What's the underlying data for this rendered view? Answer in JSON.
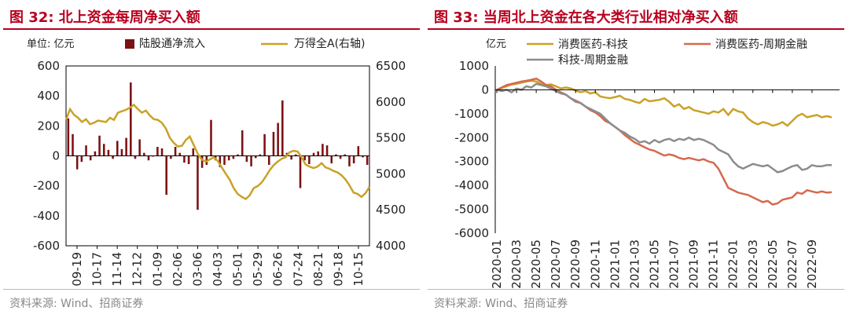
{
  "left_panel": {
    "title": "图 32:  北上资金每周净买入额",
    "source": "资料来源:  Wind、招商证券"
  },
  "right_panel": {
    "title": "图 33:  当周北上资金在各大类行业相对净买入额",
    "source": "资料来源:  Wind、招商证券"
  },
  "chart_data": [
    {
      "type": "bar",
      "unit_label": "单位:  亿元",
      "x_tick_labels": [
        "09-19",
        "10-17",
        "11-14",
        "12-12",
        "01-09",
        "02-06",
        "03-06",
        "04-03",
        "05-01",
        "05-29",
        "06-26",
        "07-24",
        "08-21",
        "09-18",
        "10-15"
      ],
      "ylim_left": [
        -600,
        600
      ],
      "yticks_left": [
        -600,
        -400,
        -200,
        0,
        200,
        400,
        600
      ],
      "ylim_right": [
        4000,
        6500
      ],
      "yticks_right": [
        4000,
        4500,
        5000,
        5500,
        6000,
        6500
      ],
      "series": [
        {
          "name": "陆股通净流入",
          "type": "bar",
          "color": "#7b1113",
          "axis": "left",
          "values": [
            250,
            145,
            -90,
            -40,
            70,
            -30,
            30,
            135,
            80,
            40,
            -20,
            100,
            45,
            120,
            490,
            -20,
            110,
            20,
            -30,
            -5,
            60,
            50,
            -260,
            -20,
            60,
            20,
            -45,
            -55,
            50,
            -360,
            -80,
            -60,
            240,
            -30,
            -75,
            -60,
            -30,
            -20,
            10,
            170,
            -40,
            -70,
            -15,
            10,
            145,
            -60,
            160,
            220,
            370,
            20,
            -25,
            10,
            -215,
            -30,
            -55,
            20,
            30,
            80,
            70,
            -50,
            10,
            -20,
            10,
            -70,
            -50,
            65,
            -10,
            -60
          ]
        },
        {
          "name": "万得全A(右轴)",
          "type": "line",
          "color": "#c9a227",
          "axis": "right",
          "values": [
            5750,
            5900,
            5820,
            5780,
            5720,
            5760,
            5690,
            5710,
            5740,
            5730,
            5720,
            5780,
            5750,
            5850,
            5870,
            5890,
            5920,
            5960,
            5900,
            5850,
            5880,
            5810,
            5760,
            5750,
            5710,
            5630,
            5500,
            5430,
            5380,
            5390,
            5470,
            5520,
            5400,
            5280,
            5200,
            5170,
            5200,
            5230,
            5180,
            5090,
            5000,
            4920,
            4800,
            4720,
            4680,
            4650,
            4700,
            4800,
            4830,
            4880,
            4960,
            5050,
            5120,
            5170,
            5210,
            5230,
            5300,
            5320,
            5310,
            5230,
            5130,
            5100,
            5080,
            5100,
            5150,
            5090,
            5070,
            5040,
            5020,
            4980,
            4920,
            4840,
            4740,
            4720,
            4680,
            4730,
            4820
          ]
        }
      ]
    },
    {
      "type": "line",
      "unit_label": "亿元",
      "x_tick_labels": [
        "2020-01",
        "2020-03",
        "2020-05",
        "2020-07",
        "2020-09",
        "2020-11",
        "2021-01",
        "2021-03",
        "2021-05",
        "2021-07",
        "2021-09",
        "2021-11",
        "2022-01",
        "2022-03",
        "2022-05",
        "2022-07",
        "2022-09"
      ],
      "ylim": [
        -6000,
        1000
      ],
      "yticks": [
        -6000,
        -5000,
        -4000,
        -3000,
        -2000,
        -1000,
        0,
        1000
      ],
      "series": [
        {
          "name": "消费医药-科技",
          "color": "#c9a227",
          "x": [
            0,
            0.5,
            1,
            1.5,
            2,
            2.5,
            3,
            3.5,
            4,
            4.5,
            5,
            5.5,
            6,
            6.5,
            7,
            7.5,
            8,
            8.5,
            9,
            9.5,
            10,
            10.5,
            11,
            11.5,
            12,
            12.5,
            13,
            13.5,
            14,
            14.5,
            15,
            15.5,
            16,
            16.5,
            17,
            17.5,
            18,
            18.5,
            19,
            19.5,
            20,
            20.5,
            21,
            21.5,
            22,
            22.5,
            23,
            23.5,
            24,
            24.5,
            25,
            25.5,
            26,
            26.5,
            27,
            27.5,
            28,
            28.5,
            29,
            29.5,
            30,
            30.5,
            31,
            31.5,
            32,
            32.5,
            33,
            33.5,
            34
          ],
          "values": [
            0,
            80,
            150,
            220,
            250,
            300,
            350,
            380,
            350,
            250,
            200,
            230,
            150,
            60,
            100,
            60,
            -30,
            -100,
            -50,
            -150,
            -100,
            -280,
            -320,
            -350,
            -300,
            -250,
            -380,
            -420,
            -500,
            -550,
            -380,
            -480,
            -450,
            -420,
            -350,
            -500,
            -700,
            -600,
            -800,
            -720,
            -850,
            -900,
            -950,
            -1000,
            -900,
            -950,
            -800,
            -1050,
            -800,
            -900,
            -950,
            -1200,
            -1350,
            -1450,
            -1350,
            -1400,
            -1500,
            -1450,
            -1350,
            -1500,
            -1300,
            -1100,
            -1000,
            -1150,
            -1100,
            -1050,
            -1150,
            -1100,
            -1150
          ]
        },
        {
          "name": "消费医药-周期金融",
          "color": "#d46a4e",
          "x": [
            0,
            0.5,
            1,
            1.5,
            2,
            2.5,
            3,
            3.5,
            4,
            4.5,
            5,
            5.5,
            6,
            6.5,
            7,
            7.5,
            8,
            8.5,
            9,
            9.5,
            10,
            10.5,
            11,
            11.5,
            12,
            12.5,
            13,
            13.5,
            14,
            14.5,
            15,
            15.5,
            16,
            16.5,
            17,
            17.5,
            18,
            18.5,
            19,
            19.5,
            20,
            20.5,
            21,
            21.5,
            22,
            22.5,
            23,
            23.5,
            24,
            24.5,
            25,
            25.5,
            26,
            26.5,
            27,
            27.5,
            28,
            28.5,
            29,
            29.5,
            30,
            30.5,
            31,
            31.5,
            32,
            32.5,
            33,
            33.5,
            34
          ],
          "values": [
            0,
            100,
            200,
            250,
            300,
            350,
            380,
            420,
            470,
            350,
            200,
            150,
            0,
            -100,
            -200,
            -350,
            -450,
            -550,
            -700,
            -850,
            -950,
            -1100,
            -1300,
            -1400,
            -1550,
            -1700,
            -1900,
            -2050,
            -2200,
            -2300,
            -2400,
            -2500,
            -2550,
            -2650,
            -2750,
            -2700,
            -2750,
            -2850,
            -2900,
            -2850,
            -2900,
            -2950,
            -2900,
            -3000,
            -3050,
            -3300,
            -3700,
            -4100,
            -4200,
            -4300,
            -4350,
            -4400,
            -4500,
            -4600,
            -4700,
            -4650,
            -4800,
            -4750,
            -4600,
            -4550,
            -4500,
            -4300,
            -4350,
            -4200,
            -4250,
            -4300,
            -4250,
            -4300,
            -4280
          ]
        },
        {
          "name": "科技-周期金融",
          "color": "#8c8c8c",
          "x": [
            0,
            0.5,
            1,
            1.5,
            2,
            2.5,
            3,
            3.5,
            4,
            4.5,
            5,
            5.5,
            6,
            6.5,
            7,
            7.5,
            8,
            8.5,
            9,
            9.5,
            10,
            10.5,
            11,
            11.5,
            12,
            12.5,
            13,
            13.5,
            14,
            14.5,
            15,
            15.5,
            16,
            16.5,
            17,
            17.5,
            18,
            18.5,
            19,
            19.5,
            20,
            20.5,
            21,
            21.5,
            22,
            22.5,
            23,
            23.5,
            24,
            24.5,
            25,
            25.5,
            26,
            26.5,
            27,
            27.5,
            28,
            28.5,
            29,
            29.5,
            30,
            30.5,
            31,
            31.5,
            32,
            32.5,
            33,
            33.5,
            34
          ],
          "values": [
            0,
            -50,
            0,
            -100,
            50,
            0,
            150,
            100,
            250,
            200,
            150,
            50,
            -50,
            -150,
            -200,
            -350,
            -500,
            -550,
            -700,
            -800,
            -900,
            -1000,
            -1200,
            -1400,
            -1550,
            -1700,
            -1800,
            -1950,
            -2050,
            -2200,
            -2150,
            -2250,
            -2100,
            -2200,
            -2100,
            -2050,
            -2150,
            -2050,
            -2100,
            -2000,
            -2100,
            -2050,
            -2100,
            -2200,
            -2300,
            -2500,
            -2600,
            -2700,
            -3000,
            -3200,
            -3300,
            -3200,
            -3100,
            -3150,
            -3200,
            -3150,
            -3300,
            -3450,
            -3400,
            -3300,
            -3200,
            -3150,
            -3350,
            -3300,
            -3150,
            -3200,
            -3200,
            -3150,
            -3150
          ]
        }
      ]
    }
  ]
}
